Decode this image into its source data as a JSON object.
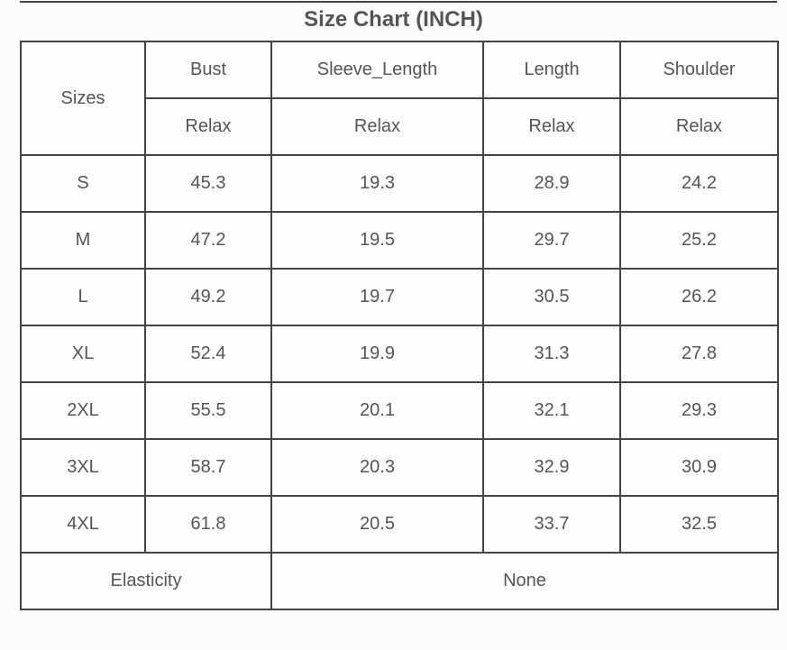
{
  "title": "Size Chart (INCH)",
  "table": {
    "header": {
      "first": "Sizes",
      "columns": [
        "Bust",
        "Sleeve_Length",
        "Length",
        "Shoulder"
      ],
      "sub": [
        "Relax",
        "Relax",
        "Relax",
        "Relax"
      ]
    },
    "rows": [
      [
        "S",
        45.3,
        19.3,
        28.9,
        24.2
      ],
      [
        "M",
        47.2,
        19.5,
        29.7,
        25.2
      ],
      [
        "L",
        49.2,
        19.7,
        30.5,
        26.2
      ],
      [
        "XL",
        52.4,
        19.9,
        31.3,
        27.8
      ],
      [
        "2XL",
        55.5,
        20.1,
        32.1,
        29.3
      ],
      [
        "3XL",
        58.7,
        20.3,
        32.9,
        30.9
      ],
      [
        "4XL",
        61.8,
        20.5,
        33.7,
        32.5
      ]
    ],
    "footer": [
      "Elasticity",
      "None"
    ]
  }
}
